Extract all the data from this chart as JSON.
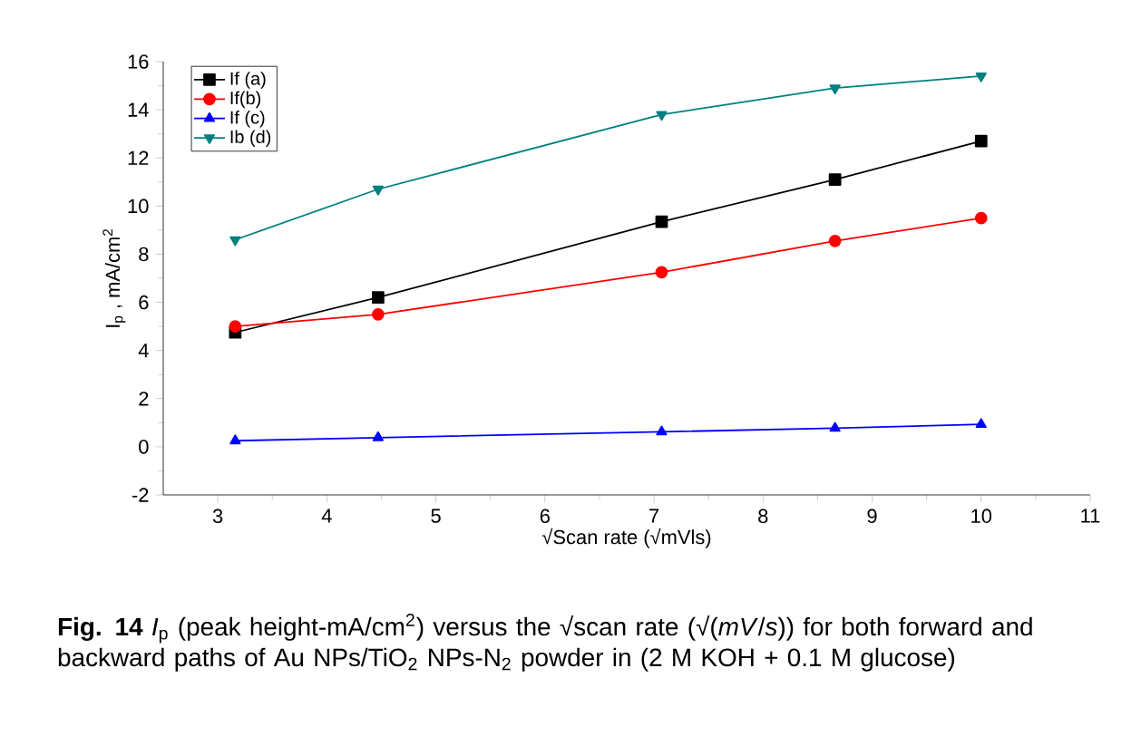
{
  "chart_data": {
    "type": "line",
    "xlabel": "√Scan rate (√mVls)",
    "ylabel": "I$_{p}$ , mA/cm$^{2}$",
    "x": [
      3.16,
      4.47,
      7.07,
      8.66,
      10
    ],
    "series": [
      {
        "name": "If (a)",
        "color": "#000000",
        "marker": "square",
        "values": [
          4.75,
          6.2,
          9.35,
          11.1,
          12.7
        ]
      },
      {
        "name": "If(b)",
        "color": "#ff0000",
        "marker": "circle",
        "values": [
          5.0,
          5.5,
          7.25,
          8.55,
          9.5
        ]
      },
      {
        "name": "If (c)",
        "color": "#0000ff",
        "marker": "triangle",
        "values": [
          0.25,
          0.38,
          0.62,
          0.77,
          0.93
        ]
      },
      {
        "name": "Ib (d)",
        "color": "#008080",
        "marker": "triangle-down",
        "values": [
          8.6,
          10.7,
          13.8,
          14.9,
          15.4
        ]
      }
    ],
    "xlim": [
      2.5,
      11
    ],
    "xticks": [
      3,
      4,
      5,
      6,
      7,
      8,
      9,
      10,
      11
    ],
    "ylim": [
      -2,
      16
    ],
    "yticks": [
      -2,
      0,
      2,
      4,
      6,
      8,
      10,
      12,
      14,
      16
    ],
    "grid": false,
    "legend": "top left",
    "line_style": "solid",
    "annotations": [
      "**Fig. 14** *I*$_{p}$ (peak height-mA/cm$^{2}$) versus the √scan rate (√(*mV*/*s*)) for both forward and backward paths of Au NPs/TiO$_{2}$ NPs-N$_{2}$ powder in (2 M KOH + 0.1 M glucose)"
    ]
  }
}
